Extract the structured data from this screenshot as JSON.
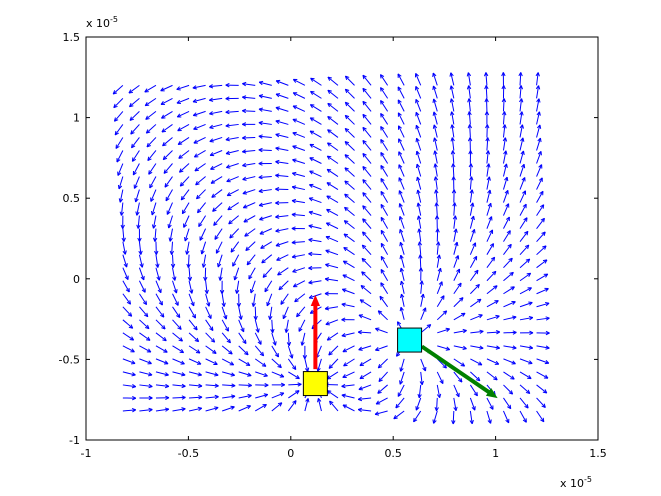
{
  "chart_data": {
    "type": "quiver",
    "title": "",
    "xlabel": "",
    "ylabel": "",
    "xlim": [
      -1,
      1.5
    ],
    "ylim": [
      -1,
      1.5
    ],
    "x_ticks": [
      -1,
      -0.5,
      0,
      0.5,
      1,
      1.5
    ],
    "y_ticks": [
      -1,
      -0.5,
      0,
      0.5,
      1,
      1.5
    ],
    "x_tick_labels": [
      "-1",
      "-0.5",
      "0",
      "0.5",
      "1",
      "1.5"
    ],
    "y_tick_labels": [
      "-1",
      "-0.5",
      "0",
      "0.5",
      "1",
      "1.5"
    ],
    "x_exponent_label": "x 10",
    "x_exponent_power": "-5",
    "y_exponent_label": "x 10",
    "y_exponent_power": "-5",
    "grid": false,
    "field": {
      "description_of_domain": "vector field sampled on a regular grid",
      "x_start": -0.82,
      "x_step": 0.0808,
      "x_count": 26,
      "y_start": -0.82,
      "y_step": 0.0808,
      "y_count": 26,
      "sources": [
        {
          "x": 0.12,
          "y": -0.65,
          "sign": 1
        },
        {
          "x": 0.58,
          "y": -0.38,
          "sign": -1
        }
      ],
      "color": "#0000ff"
    },
    "markers": [
      {
        "name": "yellow square",
        "x": 0.12,
        "y": -0.65,
        "color": "#ffff00",
        "edge": "#000000"
      },
      {
        "name": "cyan square",
        "x": 0.58,
        "y": -0.38,
        "color": "#00ffff",
        "edge": "#000000"
      }
    ],
    "arrows": [
      {
        "name": "red arrow",
        "x0": 0.12,
        "y0": -0.56,
        "x1": 0.12,
        "y1": -0.1,
        "color": "#ff0000"
      },
      {
        "name": "green arrow",
        "x0": 0.64,
        "y0": -0.42,
        "x1": 1.01,
        "y1": -0.74,
        "color": "#008000"
      }
    ]
  }
}
